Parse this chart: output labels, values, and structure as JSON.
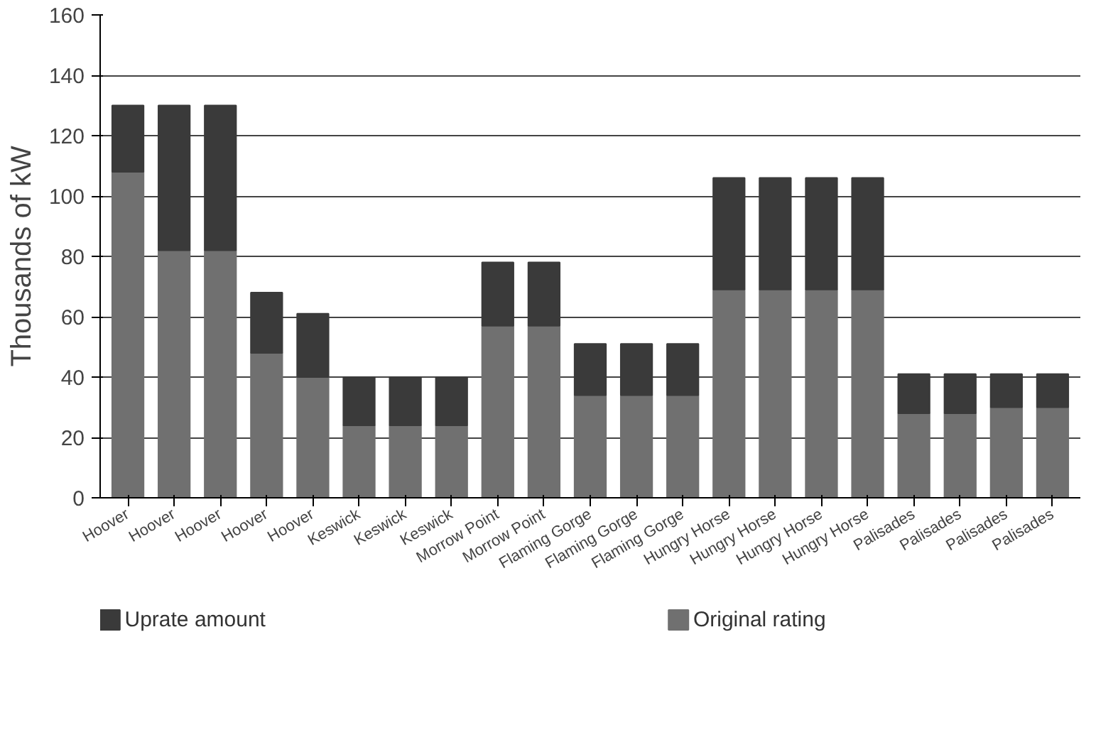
{
  "chart_data": {
    "type": "bar",
    "stacked": true,
    "ylabel": "Thousands of kW",
    "categories": [
      "Hoover",
      "Hoover",
      "Hoover",
      "Hoover",
      "Hoover",
      "Keswick",
      "Keswick",
      "Keswick",
      "Morrow Point",
      "Morrow Point",
      "Flaming Gorge",
      "Flaming Gorge",
      "Flaming Gorge",
      "Hungry Horse",
      "Hungry Horse",
      "Hungry Horse",
      "Hungry Horse",
      "Palisades",
      "Palisades",
      "Palisades",
      "Palisades"
    ],
    "series": [
      {
        "name": "Original rating",
        "color": "#707070",
        "values": [
          108,
          82,
          82,
          48,
          40,
          24,
          24,
          24,
          57,
          57,
          34,
          34,
          34,
          69,
          69,
          69,
          69,
          28,
          28,
          30,
          30
        ]
      },
      {
        "name": "Uprate amount",
        "color": "#3a3a3a",
        "values": [
          22,
          48,
          48,
          20,
          21,
          16,
          16,
          16,
          21,
          21,
          17,
          17,
          17,
          37,
          37,
          37,
          37,
          13,
          13,
          11,
          11
        ]
      }
    ],
    "ylim": [
      0,
      160
    ],
    "yticks": [
      0,
      20,
      40,
      60,
      80,
      100,
      120,
      140,
      160
    ],
    "grid": "y",
    "legend": "bottom"
  }
}
